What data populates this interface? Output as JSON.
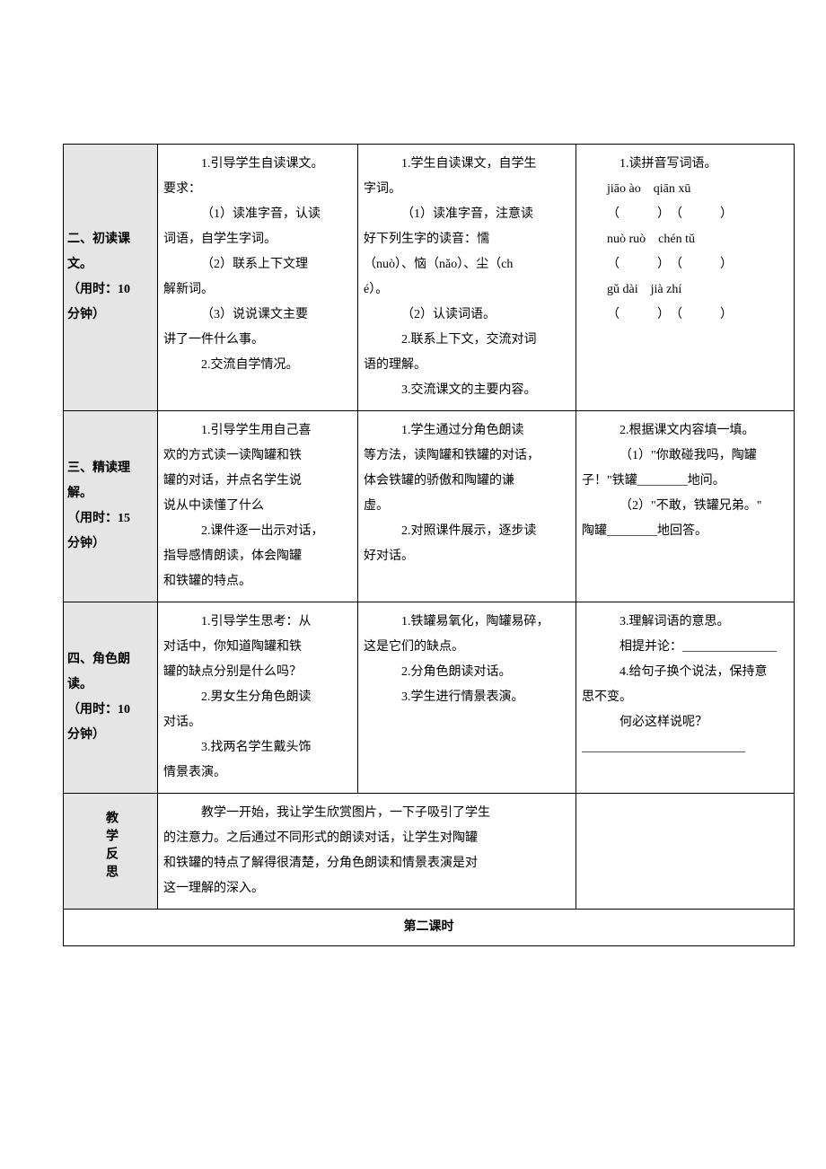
{
  "colors": {
    "border": "#000000",
    "label_bg": "#e5e5e5",
    "page_bg": "#ffffff",
    "text": "#000000"
  },
  "typography": {
    "body_fontsize_pt": 10.5,
    "bold_labels": true,
    "font_family": "SimSun"
  },
  "rows": [
    {
      "label_line1": "二、初读课文。",
      "label_line2": "（用时：10",
      "label_line3": "分钟）",
      "col2": [
        "1.引导学生自读课文。",
        "要求：",
        "（1）读准字音，认读",
        "词语，自学生字词。",
        "（2）联系上下文理",
        "解新词。",
        "（3）说说课文主要",
        "讲了一件什么事。",
        "2.交流自学情况。"
      ],
      "col3": [
        "1.学生自读课文，自学生",
        "字词。",
        "（1）读准字音，注意读",
        "好下列生字的读音：懦",
        "（nuò）、恼（nǎo）、尘（ch",
        "é）。",
        "（2）认读词语。",
        "2.联系上下文，交流对词",
        "语的理解。",
        "3.交流课文的主要内容。"
      ],
      "col4_title": "1.读拼音写词语。",
      "col4_pinyin": [
        {
          "left": "jiāo ào",
          "right": "qiān xū"
        },
        {
          "left": "nuò ruò",
          "right": "chén tǔ"
        },
        {
          "left": "gǔ dài",
          "right": "jià zhí"
        }
      ]
    },
    {
      "label_line1": "三、精读理解。",
      "label_line2": "（用时：15",
      "label_line3": "分钟）",
      "col2": [
        "1.引导学生用自己喜",
        "欢的方式读一读陶罐和铁",
        "罐的对话，并点名学生说",
        "说从中读懂了什么",
        "2.课件逐一出示对话，",
        "指导感情朗读，体会陶罐",
        "和铁罐的特点。"
      ],
      "col3": [
        "1.学生通过分角色朗读",
        "等方法，读陶罐和铁罐的对话，",
        "体会铁罐的骄傲和陶罐的谦",
        "虚。",
        "2.对照课件展示，逐步读",
        "好对话。"
      ],
      "col4": [
        "2.根据课文内容填一填。",
        "（1）\"你敢碰我吗，陶罐",
        "子！\"铁罐________地问。",
        "（2）\"不敢，铁罐兄弟。\"",
        "陶罐________地回答。"
      ]
    },
    {
      "label_line1": "四、角色朗读。",
      "label_line2": "（用时：10",
      "label_line3": "分钟）",
      "col2": [
        "1.引导学生思考：从",
        "对话中，你知道陶罐和铁",
        "罐的缺点分别是什么吗？",
        "2.男女生分角色朗读",
        "对话。",
        "3.找两名学生戴头饰",
        "情景表演。"
      ],
      "col3": [
        "1.铁罐易氧化，陶罐易碎，",
        "这是它们的缺点。",
        "2.分角色朗读对话。",
        "3.学生进行情景表演。"
      ],
      "col4": [
        "3.理解词语的意思。",
        "相提并论：_______________",
        "4.给句子换个说法，保持意",
        "思不变。",
        "何必这样说呢？",
        "__________________________"
      ]
    }
  ],
  "reflection": {
    "label": "教学反思",
    "text": [
      "教学一开始，我让学生欣赏图片，一下子吸引了学生",
      "的注意力。之后通过不同形式的朗读对话，让学生对陶罐",
      "和铁罐的特点了解得很清楚，分角色朗读和情景表演是对",
      "这一理解的深入。"
    ]
  },
  "section_head": "第二课时"
}
